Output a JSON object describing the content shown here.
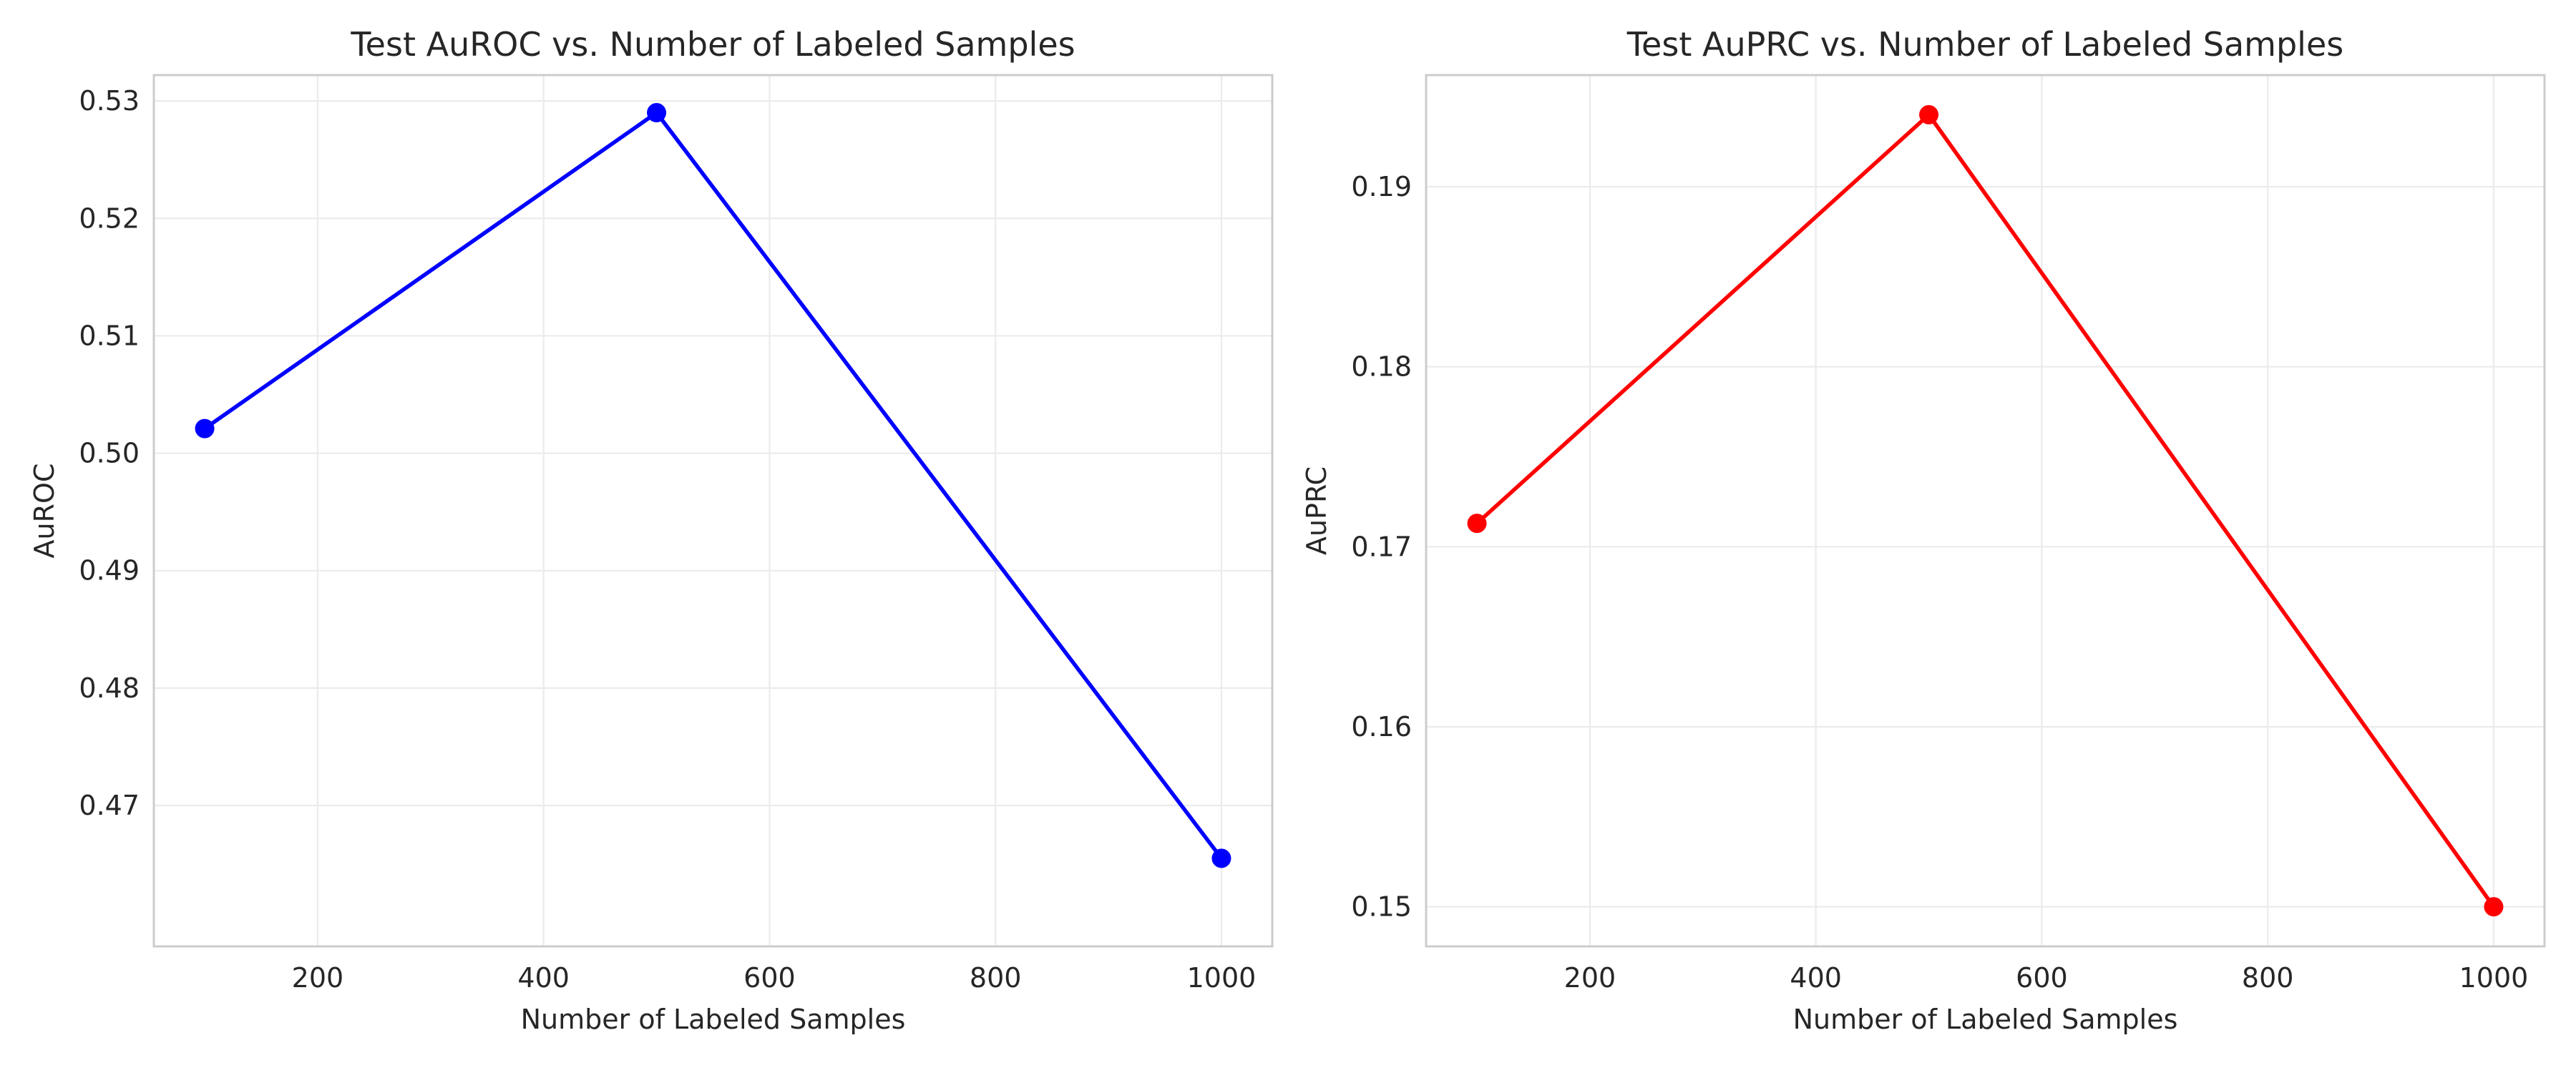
{
  "chart_data": [
    {
      "type": "line",
      "title": "Test AuROC vs. Number of Labeled Samples",
      "xlabel": "Number of Labeled Samples",
      "ylabel": "AuROC",
      "x": [
        100,
        500,
        1000
      ],
      "series": [
        {
          "values": [
            0.5021,
            0.529,
            0.4655
          ],
          "color": "#0000ff"
        }
      ],
      "xlim": [
        55,
        1045
      ],
      "ylim": [
        0.458,
        0.5322
      ],
      "xticks": [
        200,
        400,
        600,
        800,
        1000
      ],
      "xtick_labels": [
        "200",
        "400",
        "600",
        "800",
        "1000"
      ],
      "yticks": [
        0.47,
        0.48,
        0.49,
        0.5,
        0.51,
        0.52,
        0.53
      ],
      "ytick_labels": [
        "0.47",
        "0.48",
        "0.49",
        "0.50",
        "0.51",
        "0.52",
        "0.53"
      ],
      "grid": true,
      "marker": "circle"
    },
    {
      "type": "line",
      "title": "Test AuPRC vs. Number of Labeled Samples",
      "xlabel": "Number of Labeled Samples",
      "ylabel": "AuPRC",
      "x": [
        100,
        500,
        1000
      ],
      "series": [
        {
          "values": [
            0.1713,
            0.194,
            0.15
          ],
          "color": "#ff0000"
        }
      ],
      "xlim": [
        55,
        1045
      ],
      "ylim": [
        0.1478,
        0.1962
      ],
      "xticks": [
        200,
        400,
        600,
        800,
        1000
      ],
      "xtick_labels": [
        "200",
        "400",
        "600",
        "800",
        "1000"
      ],
      "yticks": [
        0.15,
        0.16,
        0.17,
        0.18,
        0.19
      ],
      "ytick_labels": [
        "0.15",
        "0.16",
        "0.17",
        "0.18",
        "0.19"
      ],
      "grid": true,
      "marker": "circle"
    }
  ]
}
